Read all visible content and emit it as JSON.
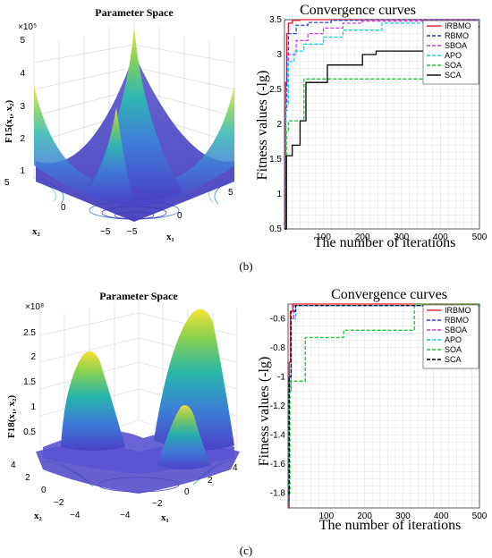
{
  "panel_b": {
    "label": "(b)",
    "surface": {
      "title": "Parameter Space",
      "zlabel": "F15(x₁, x₂)",
      "zscale": "×10⁵",
      "xlabel": "x₁",
      "ylabel": "x₂",
      "zticks": [
        "5",
        "4",
        "3",
        "2",
        "1"
      ],
      "xticks": [
        "5",
        "0",
        "−5"
      ],
      "yticks": [
        "5",
        "0",
        "−5"
      ]
    },
    "convergence": {
      "title": "Convergence curves",
      "xlabel": "The number of iterations",
      "ylabel": "Fitness values (-lg)",
      "xticks": [
        "100",
        "200",
        "300",
        "400",
        "500"
      ],
      "yticks": [
        "3.5",
        "3",
        "2.5",
        "2",
        "1.5",
        "1",
        "0.5"
      ],
      "legend": [
        "IRBMO",
        "RBMO",
        "SBOA",
        "APO",
        "SOA",
        "SCA"
      ]
    }
  },
  "panel_c": {
    "label": "(c)",
    "surface": {
      "title": "Parameter Space",
      "zlabel": "F18(x₁, x₂)",
      "zscale": "×10⁸",
      "xlabel": "x₁",
      "ylabel": "x₂",
      "zticks": [
        "2.5",
        "2",
        "1.5",
        "1",
        "0.5"
      ],
      "xticks": [
        "4",
        "2",
        "0",
        "−2",
        "−4"
      ],
      "yticks": [
        "4",
        "2",
        "0",
        "−2",
        "−4"
      ]
    },
    "convergence": {
      "title": "Convergence curves",
      "xlabel": "The number of iterations",
      "ylabel": "Fitness values (-lg)",
      "xticks": [
        "100",
        "200",
        "300",
        "400",
        "500"
      ],
      "yticks": [
        "-0.6",
        "-0.8",
        "-1",
        "-1.2",
        "-1.4",
        "-1.6",
        "-1.8"
      ],
      "legend": [
        "IRBMO",
        "RBMO",
        "SBOA",
        "APO",
        "SOA",
        "SCA"
      ]
    }
  },
  "chart_data": [
    {
      "type": "line",
      "title": "Convergence curves",
      "xlabel": "The number of iterations",
      "ylabel": "Fitness values (-lg)",
      "xlim": [
        0,
        500
      ],
      "ylim": [
        0.5,
        3.5
      ],
      "grid": true,
      "legend_position": "top-right",
      "series": [
        {
          "name": "IRBMO",
          "color": "#e8192c",
          "dash": "solid",
          "x": [
            0,
            3,
            6,
            10,
            20,
            40,
            80,
            200,
            500
          ],
          "y": [
            0.5,
            2.6,
            3.3,
            3.45,
            3.49,
            3.5,
            3.5,
            3.5,
            3.5
          ]
        },
        {
          "name": "RBMO",
          "color": "#2c3fc8",
          "dash": "dashed",
          "x": [
            0,
            3,
            6,
            10,
            30,
            60,
            120,
            200,
            500
          ],
          "y": [
            0.5,
            2.2,
            3.0,
            3.3,
            3.42,
            3.46,
            3.49,
            3.5,
            3.5
          ]
        },
        {
          "name": "SBOA",
          "color": "#d23fd2",
          "dash": "dashed",
          "x": [
            0,
            4,
            10,
            30,
            60,
            100,
            150,
            200,
            500
          ],
          "y": [
            0.5,
            2.5,
            3.0,
            3.2,
            3.3,
            3.38,
            3.45,
            3.48,
            3.5
          ]
        },
        {
          "name": "APO",
          "color": "#1ccbe0",
          "dash": "dashed",
          "x": [
            0,
            4,
            10,
            25,
            50,
            100,
            150,
            250,
            500
          ],
          "y": [
            0.5,
            2.3,
            2.9,
            3.05,
            3.15,
            3.25,
            3.35,
            3.45,
            3.5
          ]
        },
        {
          "name": "SOA",
          "color": "#22c23a",
          "dash": "dashed",
          "x": [
            0,
            5,
            10,
            45,
            50,
            470,
            475,
            500
          ],
          "y": [
            0.5,
            1.9,
            2.05,
            2.05,
            2.65,
            2.65,
            2.92,
            2.92
          ]
        },
        {
          "name": "SCA",
          "color": "#000000",
          "dash": "solid",
          "x": [
            0,
            5,
            20,
            40,
            55,
            110,
            200,
            235,
            400,
            470,
            500
          ],
          "y": [
            0.5,
            1.55,
            1.7,
            2.05,
            2.6,
            2.85,
            3.0,
            3.05,
            3.25,
            3.4,
            3.4
          ]
        }
      ]
    },
    {
      "type": "line",
      "title": "Convergence curves",
      "xlabel": "The number of iterations",
      "ylabel": "Fitness values (-lg)",
      "xlim": [
        0,
        500
      ],
      "ylim": [
        -1.9,
        -0.5
      ],
      "grid": true,
      "legend_position": "top-right",
      "series": [
        {
          "name": "IRBMO",
          "color": "#e8192c",
          "dash": "solid",
          "x": [
            0,
            3,
            6,
            12,
            500
          ],
          "y": [
            -1.9,
            -0.9,
            -0.55,
            -0.5,
            -0.5
          ]
        },
        {
          "name": "RBMO",
          "color": "#2c3fc8",
          "dash": "dashed",
          "x": [
            0,
            3,
            8,
            15,
            500
          ],
          "y": [
            -1.85,
            -1.0,
            -0.6,
            -0.51,
            -0.5
          ]
        },
        {
          "name": "SBOA",
          "color": "#d23fd2",
          "dash": "dashed",
          "x": [
            0,
            3,
            8,
            15,
            500
          ],
          "y": [
            -1.7,
            -1.1,
            -0.6,
            -0.51,
            -0.5
          ]
        },
        {
          "name": "APO",
          "color": "#1ccbe0",
          "dash": "dashed",
          "x": [
            0,
            3,
            8,
            20,
            500
          ],
          "y": [
            -1.75,
            -1.1,
            -0.6,
            -0.51,
            -0.5
          ]
        },
        {
          "name": "SOA",
          "color": "#22c23a",
          "dash": "dashed",
          "x": [
            0,
            5,
            40,
            45,
            140,
            145,
            320,
            330,
            500
          ],
          "y": [
            -1.8,
            -1.03,
            -1.03,
            -0.73,
            -0.73,
            -0.68,
            -0.68,
            -0.5,
            -0.5
          ]
        },
        {
          "name": "SCA",
          "color": "#000000",
          "dash": "dashed",
          "x": [
            0,
            3,
            8,
            20,
            500
          ],
          "y": [
            -1.8,
            -1.0,
            -0.55,
            -0.51,
            -0.5
          ]
        }
      ]
    }
  ]
}
